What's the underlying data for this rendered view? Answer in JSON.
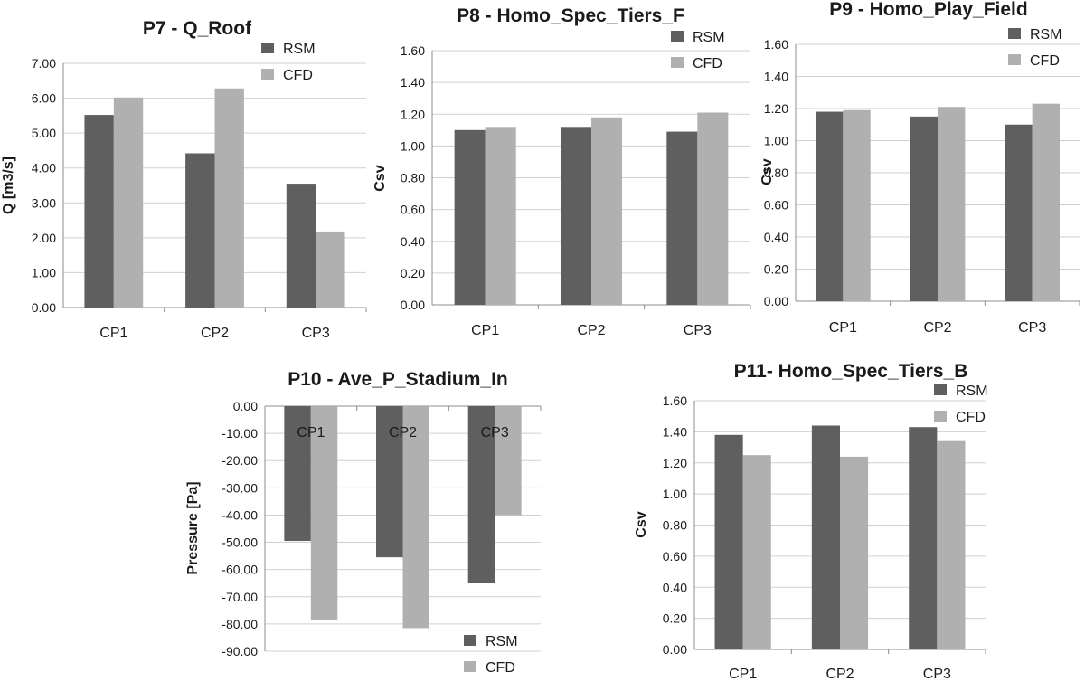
{
  "chart_data": [
    {
      "type": "bar",
      "title": "P7 - Q_Roof",
      "ylabel": "Q [m3/s]",
      "xlabel": "",
      "categories": [
        "CP1",
        "CP2",
        "CP3"
      ],
      "yticks": [
        "0.00",
        "1.00",
        "2.00",
        "3.00",
        "4.00",
        "5.00",
        "6.00",
        "7.00"
      ],
      "ylim": [
        0,
        7
      ],
      "grid": true,
      "legend_position": "top-right",
      "series": [
        {
          "name": "RSM",
          "color": "#5f5f5f",
          "values": [
            5.52,
            4.42,
            3.55
          ]
        },
        {
          "name": "CFD",
          "color": "#b0b0b0",
          "values": [
            6.02,
            6.28,
            2.18
          ]
        }
      ]
    },
    {
      "type": "bar",
      "title": "P8 - Homo_Spec_Tiers_F",
      "ylabel": "Csv",
      "xlabel": "",
      "categories": [
        "CP1",
        "CP2",
        "CP3"
      ],
      "yticks": [
        "0.00",
        "0.20",
        "0.40",
        "0.60",
        "0.80",
        "1.00",
        "1.20",
        "1.40",
        "1.60"
      ],
      "ylim": [
        0,
        1.6
      ],
      "grid": true,
      "legend_position": "top-right",
      "series": [
        {
          "name": "RSM",
          "color": "#5f5f5f",
          "values": [
            1.1,
            1.12,
            1.09
          ]
        },
        {
          "name": "CFD",
          "color": "#b0b0b0",
          "values": [
            1.12,
            1.18,
            1.21
          ]
        }
      ]
    },
    {
      "type": "bar",
      "title": "P9 - Homo_Play_Field",
      "ylabel": "Csv",
      "xlabel": "",
      "categories": [
        "CP1",
        "CP2",
        "CP3"
      ],
      "yticks": [
        "0.00",
        "0.20",
        "0.40",
        "0.60",
        "0.80",
        "1.00",
        "1.20",
        "1.40",
        "1.60"
      ],
      "ylim": [
        0,
        1.6
      ],
      "grid": true,
      "legend_position": "top-right",
      "series": [
        {
          "name": "RSM",
          "color": "#5f5f5f",
          "values": [
            1.18,
            1.15,
            1.1
          ]
        },
        {
          "name": "CFD",
          "color": "#b0b0b0",
          "values": [
            1.19,
            1.21,
            1.23
          ]
        }
      ]
    },
    {
      "type": "bar",
      "title": "P10 - Ave_P_Stadium_In",
      "ylabel": "Pressure [Pa]",
      "xlabel": "",
      "categories": [
        "CP1",
        "CP2",
        "CP3"
      ],
      "yticks": [
        "0.00",
        "-10.00",
        "-20.00",
        "-30.00",
        "-40.00",
        "-50.00",
        "-60.00",
        "-70.00",
        "-80.00",
        "-90.00"
      ],
      "ylim": [
        -90,
        0
      ],
      "grid": true,
      "legend_position": "bottom-right",
      "series": [
        {
          "name": "RSM",
          "color": "#5f5f5f",
          "values": [
            -49.5,
            -55.5,
            -65.0
          ]
        },
        {
          "name": "CFD",
          "color": "#b0b0b0",
          "values": [
            -78.5,
            -81.5,
            -40.0
          ]
        }
      ]
    },
    {
      "type": "bar",
      "title": "P11- Homo_Spec_Tiers_B",
      "ylabel": "Csv",
      "xlabel": "",
      "categories": [
        "CP1",
        "CP2",
        "CP3"
      ],
      "yticks": [
        "0.00",
        "0.20",
        "0.40",
        "0.60",
        "0.80",
        "1.00",
        "1.20",
        "1.40",
        "1.60"
      ],
      "ylim": [
        0,
        1.6
      ],
      "grid": true,
      "legend_position": "top-right",
      "series": [
        {
          "name": "RSM",
          "color": "#5f5f5f",
          "values": [
            1.38,
            1.44,
            1.43
          ]
        },
        {
          "name": "CFD",
          "color": "#b0b0b0",
          "values": [
            1.25,
            1.24,
            1.34
          ]
        }
      ]
    }
  ]
}
